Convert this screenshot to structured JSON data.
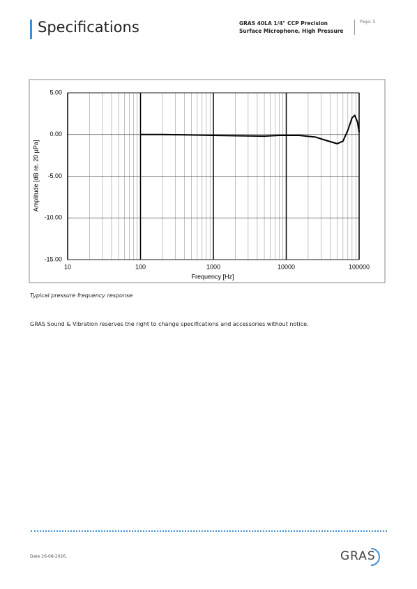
{
  "header": {
    "title": "Specifications",
    "product": "GRAS 40LA 1/4\" CCP Precision Surface Microphone, High Pressure",
    "page": "Page: 5"
  },
  "chart_data": {
    "type": "line",
    "xlabel": "Frequency [Hz]",
    "ylabel": "Amplitude [dB re. 20 µPa]",
    "x": [
      100,
      200,
      500,
      1000,
      2000,
      5000,
      8000,
      15000,
      25000,
      35000,
      50000,
      60000,
      70000,
      80000,
      87000,
      95000,
      100000
    ],
    "series": [
      {
        "color": "#000000",
        "values": [
          0,
          0,
          -0.05,
          -0.1,
          -0.15,
          -0.2,
          -0.1,
          -0.1,
          -0.3,
          -0.7,
          -1.1,
          -0.8,
          0.5,
          2.0,
          2.3,
          1.5,
          0.3
        ]
      }
    ],
    "xlim": [
      10,
      100000
    ],
    "xticks": [
      10,
      100,
      1000,
      10000,
      100000
    ],
    "log_x": true,
    "minor_grid": true,
    "grid": true,
    "ylim": [
      -15,
      5
    ],
    "yticks": [
      {
        "value": 5,
        "label": "5.00"
      },
      {
        "value": 0,
        "label": "0.00"
      },
      {
        "value": -5,
        "label": "-5.00"
      },
      {
        "value": -10,
        "label": "-10.00"
      },
      {
        "value": -15,
        "label": "-15.00"
      }
    ]
  },
  "caption": "Typical pressure frequency response",
  "notice": "GRAS Sound & Vibration reserves the right to change specifications and accessories without notice.",
  "footer": {
    "date": "Date 26-08-2026.",
    "logo": "GRAS"
  }
}
